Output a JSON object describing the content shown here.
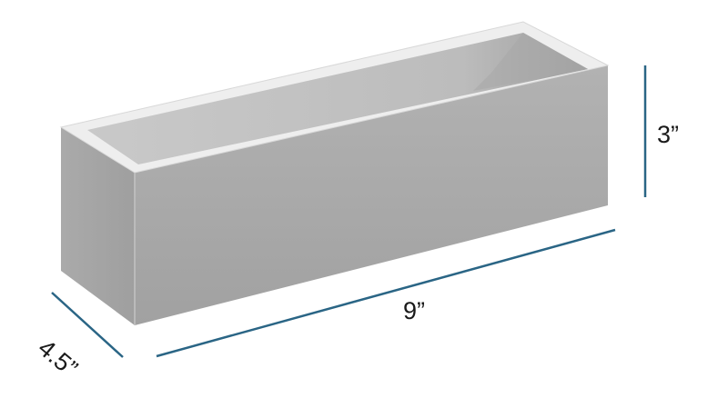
{
  "diagram": {
    "object": "planter-box",
    "colors": {
      "dimension_line": "#2a6585",
      "box_front": "#a9a9a9",
      "box_side": "#a4a4a4",
      "box_rim": "#eeeeee",
      "box_inner": "#c2c2c2",
      "label_text": "#1a1a1a"
    },
    "dimensions": {
      "length": {
        "label": "9”"
      },
      "width": {
        "label": "4.5”"
      },
      "height": {
        "label": "3”"
      }
    }
  }
}
